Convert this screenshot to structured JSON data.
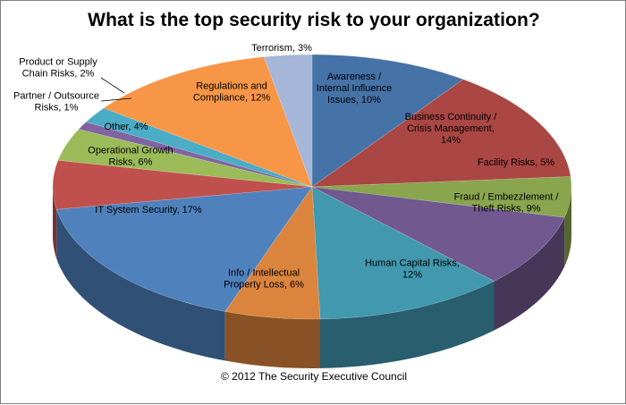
{
  "chart_data": {
    "type": "pie",
    "title": "What is the top security risk to your organization?",
    "source_note": "© 2012 The Security Executive Council",
    "slices": [
      {
        "label": "Awareness / Internal Influence Issues",
        "value": 10,
        "display": [
          "Awareness /",
          "Internal Influence",
          "Issues, 10%"
        ],
        "color": "#4572a7"
      },
      {
        "label": "Business Continuity / Crisis Management",
        "value": 14,
        "display": [
          "Business Continuity  /",
          "Crisis Management,",
          "14%"
        ],
        "color": "#aa4643"
      },
      {
        "label": "Facility Risks",
        "value": 5,
        "display": [
          "Facility Risks, 5%"
        ],
        "color": "#89a54e"
      },
      {
        "label": "Fraud / Embezzlement / Theft Risks",
        "value": 9,
        "display": [
          "Fraud / Embezzlement  /",
          "Theft Risks, 9%"
        ],
        "color": "#71588f"
      },
      {
        "label": "Human Capital Risks",
        "value": 12,
        "display": [
          "Human Capital  Risks,",
          "12%"
        ],
        "color": "#4198af"
      },
      {
        "label": "Info / Intellectual Property Loss",
        "value": 6,
        "display": [
          "Info  /  Intellectual",
          "Property Loss, 6%"
        ],
        "color": "#db843d"
      },
      {
        "label": "IT System Security",
        "value": 17,
        "display": [
          "IT System Security, 17%"
        ],
        "color": "#4f81bd"
      },
      {
        "label": "Operational Growth Risks",
        "value": 6,
        "display": [
          "Operational Growth",
          "Risks, 6%"
        ],
        "color": "#c0504d"
      },
      {
        "label": "Other",
        "value": 4,
        "display": [
          "Other, 4%"
        ],
        "color": "#9bbb59"
      },
      {
        "label": "Partner / Outsource Risks",
        "value": 1,
        "display": [
          "Partner / Outsource",
          "Risks, 1%"
        ],
        "color": "#8064a2"
      },
      {
        "label": "Product or Supply Chain Risks",
        "value": 2,
        "display": [
          "Product or Supply",
          "Chain Risks, 2%"
        ],
        "color": "#4bacc6"
      },
      {
        "label": "Regulations and Compliance",
        "value": 12,
        "display": [
          "Regulations and",
          "Compliance, 12%"
        ],
        "color": "#f79646"
      },
      {
        "label": "Terrorism",
        "value": 3,
        "display": [
          "Terrorism, 3%"
        ],
        "color": "#a5b6d9"
      }
    ]
  }
}
